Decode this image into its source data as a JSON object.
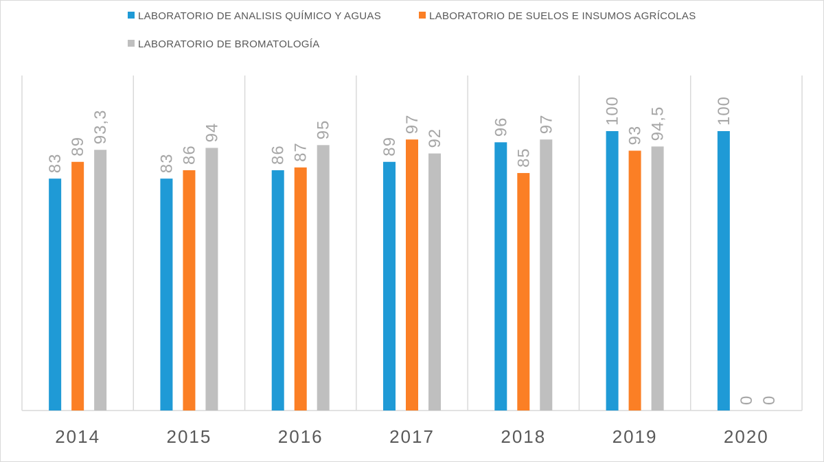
{
  "chart_data": {
    "type": "bar",
    "categories": [
      "2014",
      "2015",
      "2016",
      "2017",
      "2018",
      "2019",
      "2020"
    ],
    "series": [
      {
        "name": "LABORATORIO DE ANALISIS QUÍMICO Y AGUAS",
        "color": "#1f9ad6",
        "values": [
          83,
          83,
          86,
          89,
          96,
          100,
          100
        ],
        "labels": [
          "83",
          "83",
          "86",
          "89",
          "96",
          "100",
          "100"
        ]
      },
      {
        "name": "LABORATORIO DE SUELOS E INSUMOS AGRÍCOLAS",
        "color": "#fb7f25",
        "values": [
          89,
          86,
          87,
          97,
          85,
          93,
          0
        ],
        "labels": [
          "89",
          "86",
          "87",
          "97",
          "85",
          "93",
          "0"
        ]
      },
      {
        "name": "LABORATORIO DE BROMATOLOGÍA",
        "color": "#bfbfbf",
        "values": [
          93.3,
          94,
          95,
          92,
          97,
          94.5,
          0
        ],
        "labels": [
          "93,3",
          "94",
          "95",
          "92",
          "97",
          "94,5",
          "0"
        ]
      }
    ],
    "title": "",
    "xlabel": "",
    "ylabel": "",
    "ylim": [
      0,
      100
    ],
    "grid": "vertical category separators",
    "legend_position": "top"
  }
}
